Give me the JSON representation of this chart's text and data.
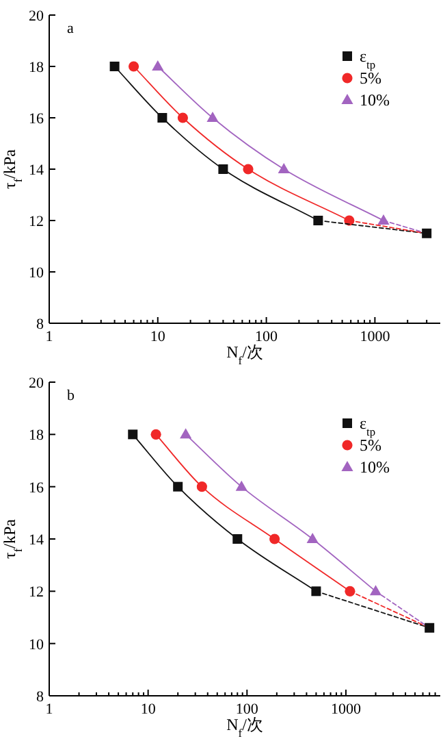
{
  "chart_data": [
    {
      "type": "line",
      "title": "a",
      "xlabel": "N$_{f}$/次",
      "ylabel": "τ$_{f}$/kPa",
      "log": "x",
      "xlim": [
        1,
        4000
      ],
      "ylim": [
        8,
        20
      ],
      "xticks": [
        1,
        {
          "value": 2,
          "label": null
        },
        {
          "value": 3,
          "label": null
        },
        {
          "value": 4,
          "label": null
        },
        {
          "value": 5,
          "label": null
        },
        {
          "value": 6,
          "label": null
        },
        {
          "value": 7,
          "label": null
        },
        {
          "value": 8,
          "label": null
        },
        {
          "value": 9,
          "label": null
        },
        10,
        {
          "value": 20,
          "label": null
        },
        {
          "value": 30,
          "label": null
        },
        {
          "value": 40,
          "label": null
        },
        {
          "value": 50,
          "label": null
        },
        {
          "value": 60,
          "label": null
        },
        {
          "value": 70,
          "label": null
        },
        {
          "value": 80,
          "label": null
        },
        {
          "value": 90,
          "label": null
        },
        100,
        {
          "value": 200,
          "label": null
        },
        {
          "value": 300,
          "label": null
        },
        {
          "value": 400,
          "label": null
        },
        {
          "value": 500,
          "label": null
        },
        {
          "value": 600,
          "label": null
        },
        {
          "value": 700,
          "label": null
        },
        {
          "value": 800,
          "label": null
        },
        {
          "value": 900,
          "label": null
        },
        1000,
        {
          "value": 2000,
          "label": null
        },
        {
          "value": 3000,
          "label": null
        }
      ],
      "yticks": [
        8,
        10,
        12,
        14,
        16,
        18,
        20
      ],
      "legend": "top right",
      "series": [
        {
          "name": "ε$_{tp}$",
          "color": "#111111",
          "marker": "square",
          "x": [
            4,
            11,
            40,
            300
          ],
          "values": [
            18,
            16,
            14,
            12
          ]
        },
        {
          "name": "5%",
          "color": "#f02828",
          "marker": "circle",
          "x": [
            6,
            17,
            68,
            580
          ],
          "values": [
            18,
            16,
            14,
            12
          ]
        },
        {
          "name": "10%",
          "color": "#a264c0",
          "marker": "triangle",
          "x": [
            10,
            32,
            145,
            1200
          ],
          "values": [
            18,
            16,
            14,
            12
          ]
        },
        {
          "color": "#111111",
          "marker": "none",
          "line_style": "dashed",
          "x": [
            300,
            3000
          ],
          "values": [
            12,
            11.5
          ]
        },
        {
          "color": "#f02828",
          "marker": "none",
          "line_style": "dashed",
          "x": [
            580,
            3000
          ],
          "values": [
            12,
            11.5
          ]
        },
        {
          "color": "#a264c0",
          "marker": "none",
          "line_style": "dashed",
          "x": [
            1200,
            3000
          ],
          "values": [
            12,
            11.5
          ]
        },
        {
          "type": "scatter",
          "color": "#111111",
          "marker": "square",
          "x": [
            3000
          ],
          "values": [
            11.5
          ]
        }
      ]
    },
    {
      "type": "line",
      "title": "b",
      "xlabel": "N$_{f}$/次",
      "ylabel": "τ$_{f}$/kPa",
      "log": "x",
      "xlim": [
        1,
        9000
      ],
      "ylim": [
        8,
        20
      ],
      "xticks": [
        1,
        {
          "value": 2,
          "label": null
        },
        {
          "value": 3,
          "label": null
        },
        {
          "value": 4,
          "label": null
        },
        {
          "value": 5,
          "label": null
        },
        {
          "value": 6,
          "label": null
        },
        {
          "value": 7,
          "label": null
        },
        {
          "value": 8,
          "label": null
        },
        {
          "value": 9,
          "label": null
        },
        10,
        {
          "value": 20,
          "label": null
        },
        {
          "value": 30,
          "label": null
        },
        {
          "value": 40,
          "label": null
        },
        {
          "value": 50,
          "label": null
        },
        {
          "value": 60,
          "label": null
        },
        {
          "value": 70,
          "label": null
        },
        {
          "value": 80,
          "label": null
        },
        {
          "value": 90,
          "label": null
        },
        100,
        {
          "value": 200,
          "label": null
        },
        {
          "value": 300,
          "label": null
        },
        {
          "value": 400,
          "label": null
        },
        {
          "value": 500,
          "label": null
        },
        {
          "value": 600,
          "label": null
        },
        {
          "value": 700,
          "label": null
        },
        {
          "value": 800,
          "label": null
        },
        {
          "value": 900,
          "label": null
        },
        1000,
        {
          "value": 2000,
          "label": null
        },
        {
          "value": 3000,
          "label": null
        },
        {
          "value": 4000,
          "label": null
        },
        {
          "value": 5000,
          "label": null
        },
        {
          "value": 6000,
          "label": null
        },
        {
          "value": 7000,
          "label": null
        },
        {
          "value": 8000,
          "label": null
        }
      ],
      "yticks": [
        8,
        10,
        12,
        14,
        16,
        18,
        20
      ],
      "legend": "top right",
      "series": [
        {
          "name": "ε$_{tp}$",
          "color": "#111111",
          "marker": "square",
          "x": [
            7,
            20,
            80,
            500
          ],
          "values": [
            18,
            16,
            14,
            12
          ]
        },
        {
          "name": "5%",
          "color": "#f02828",
          "marker": "circle",
          "x": [
            12,
            35,
            190,
            1100
          ],
          "values": [
            18,
            16,
            14,
            12
          ]
        },
        {
          "name": "10%",
          "color": "#a264c0",
          "marker": "triangle",
          "x": [
            24,
            88,
            460,
            2000
          ],
          "values": [
            18,
            16,
            14,
            12
          ]
        },
        {
          "color": "#111111",
          "marker": "none",
          "line_style": "dashed",
          "x": [
            500,
            7000
          ],
          "values": [
            12,
            10.6
          ]
        },
        {
          "color": "#f02828",
          "marker": "none",
          "line_style": "dashed",
          "x": [
            1100,
            7000
          ],
          "values": [
            12,
            10.6
          ]
        },
        {
          "color": "#a264c0",
          "marker": "none",
          "line_style": "dashed",
          "x": [
            2000,
            7000
          ],
          "values": [
            12,
            10.6
          ]
        },
        {
          "type": "scatter",
          "color": "#111111",
          "marker": "square",
          "x": [
            7000
          ],
          "values": [
            10.6
          ]
        }
      ]
    }
  ]
}
